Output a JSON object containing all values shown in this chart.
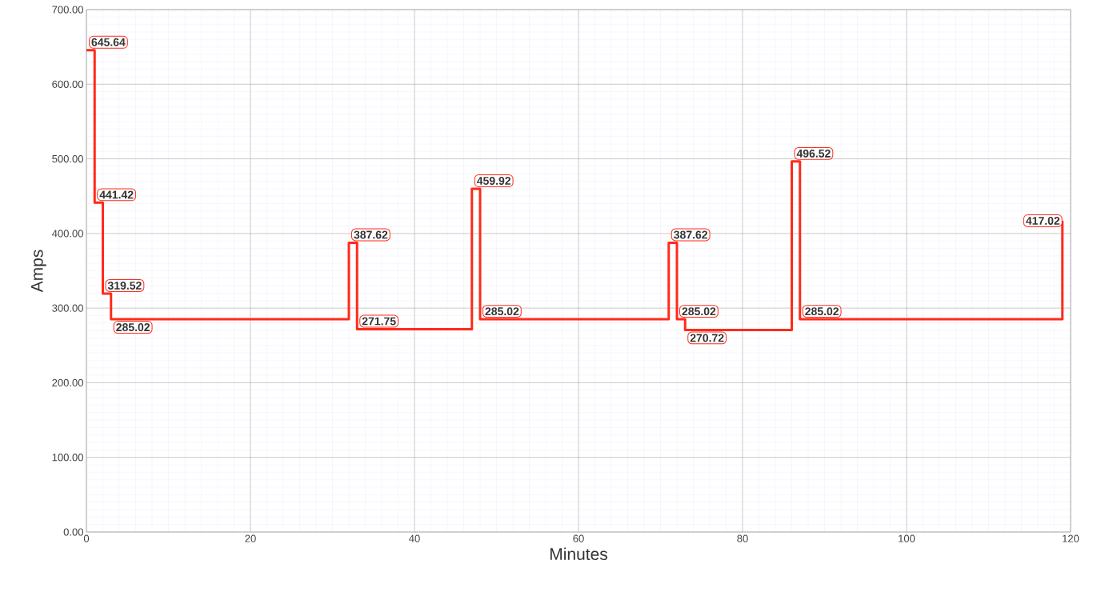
{
  "chart_data": {
    "type": "step",
    "xlabel": "Minutes",
    "ylabel": "Amps",
    "x": [
      0,
      1,
      2,
      3,
      32,
      33,
      47,
      48,
      71,
      72,
      73,
      86,
      87,
      119
    ],
    "values": [
      645.64,
      441.42,
      319.52,
      285.02,
      387.62,
      271.75,
      459.92,
      285.02,
      387.62,
      285.02,
      270.72,
      496.52,
      285.02,
      417.02
    ],
    "value_labels": [
      "645.64",
      "441.42",
      "319.52",
      "285.02",
      "387.62",
      "271.75",
      "459.92",
      "285.02",
      "387.62",
      "285.02",
      "270.72",
      "496.52",
      "285.02",
      "417.02"
    ],
    "color": "#ff2a1a",
    "xlim": [
      0,
      120
    ],
    "ylim": [
      0,
      700
    ],
    "xticks": [
      0,
      20,
      40,
      60,
      80,
      100,
      120
    ],
    "yticks": [
      {
        "value": 0,
        "label": "0.00"
      },
      {
        "value": 100,
        "label": "100.00"
      },
      {
        "value": 200,
        "label": "200.00"
      },
      {
        "value": 300,
        "label": "300.00"
      },
      {
        "value": 400,
        "label": "400.00"
      },
      {
        "value": 500,
        "label": "500.00"
      },
      {
        "value": 600,
        "label": "600.00"
      },
      {
        "value": 700,
        "label": "700.00"
      }
    ],
    "grid": true
  }
}
